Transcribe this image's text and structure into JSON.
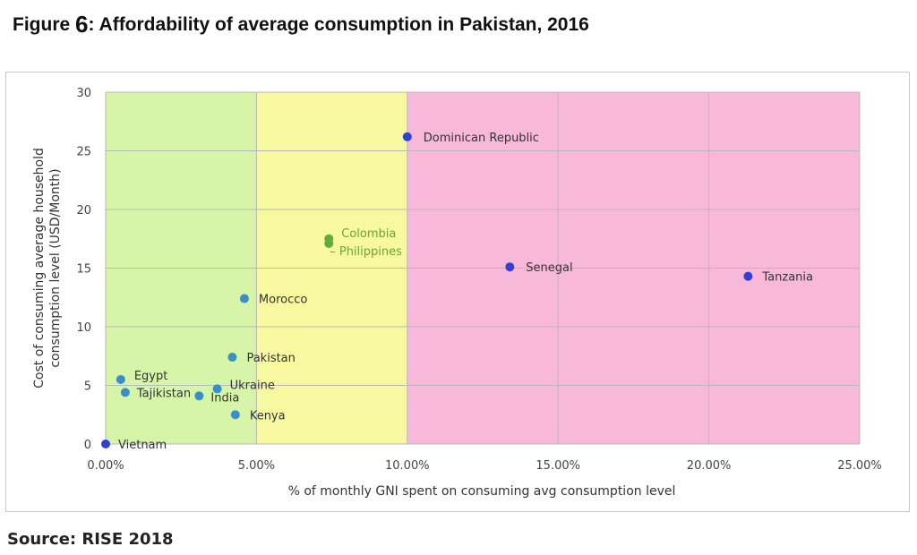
{
  "figure": {
    "title_prefix": "Figure",
    "title_number": "6",
    "title_text": ": Affordability of average consumption in Pakistan, 2016",
    "source": "Source: RISE 2018"
  },
  "chart_data": {
    "type": "scatter",
    "title": "Affordability of average consumption in Pakistan, 2016",
    "xlabel": "% of monthly GNI spent on consuming avg consumption level",
    "ylabel_lines": [
      "Cost of consuming average household",
      "consumption level (USD/Month)"
    ],
    "xlim": [
      0,
      25
    ],
    "ylim": [
      0,
      30
    ],
    "x_ticks": [
      0,
      5,
      10,
      15,
      20,
      25
    ],
    "x_tick_labels": [
      "0.00%",
      "5.00%",
      "10.00%",
      "15.00%",
      "20.00%",
      "25.00%"
    ],
    "y_ticks": [
      0,
      5,
      10,
      15,
      20,
      25,
      30
    ],
    "y_tick_labels": [
      "0",
      "5",
      "10",
      "15",
      "20",
      "25",
      "30"
    ],
    "grid": true,
    "bands": [
      {
        "from": 0,
        "to": 5,
        "color": "#d6f5a8"
      },
      {
        "from": 5,
        "to": 10,
        "color": "#f8f8a0"
      },
      {
        "from": 10,
        "to": 25,
        "color": "#f7b8da"
      }
    ],
    "points": [
      {
        "label": "Dominican Republic",
        "x": 10.0,
        "y": 26.2,
        "color": "#2f3fd8",
        "label_color": "#333333"
      },
      {
        "label": "Colombia",
        "x": 7.4,
        "y": 17.5,
        "color": "#5fae3a",
        "label_color": "#6aa830"
      },
      {
        "label": "Philippines",
        "x": 7.4,
        "y": 17.1,
        "color": "#5fae3a",
        "label_color": "#6aa830"
      },
      {
        "label": "Senegal",
        "x": 13.4,
        "y": 15.1,
        "color": "#2f3fd8",
        "label_color": "#333333"
      },
      {
        "label": "Tanzania",
        "x": 21.3,
        "y": 14.3,
        "color": "#2f3fd8",
        "label_color": "#333333"
      },
      {
        "label": "Morocco",
        "x": 4.6,
        "y": 12.4,
        "color": "#3a8fc8",
        "label_color": "#333333"
      },
      {
        "label": "Pakistan",
        "x": 4.2,
        "y": 7.4,
        "color": "#3a8fc8",
        "label_color": "#333333"
      },
      {
        "label": "Egypt",
        "x": 0.5,
        "y": 5.5,
        "color": "#3a8fc8",
        "label_color": "#333333"
      },
      {
        "label": "Tajikistan",
        "x": 0.65,
        "y": 4.4,
        "color": "#3a8fc8",
        "label_color": "#333333"
      },
      {
        "label": "Ukraine",
        "x": 3.7,
        "y": 4.7,
        "color": "#3a8fc8",
        "label_color": "#333333"
      },
      {
        "label": "India",
        "x": 3.1,
        "y": 4.1,
        "color": "#3a8fc8",
        "label_color": "#333333"
      },
      {
        "label": "Kenya",
        "x": 4.3,
        "y": 2.5,
        "color": "#3a8fc8",
        "label_color": "#333333"
      },
      {
        "label": "Vietnam",
        "x": 0.0,
        "y": 0.0,
        "color": "#2f3fd8",
        "label_color": "#333333"
      }
    ]
  }
}
